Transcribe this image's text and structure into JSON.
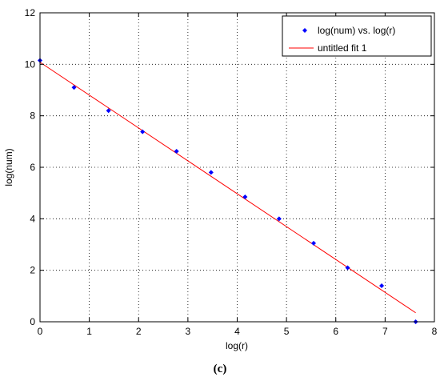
{
  "caption": "(c)",
  "chart_data": {
    "type": "scatter",
    "xlabel": "log(r)",
    "ylabel": "log(num)",
    "xlim": [
      0,
      8
    ],
    "ylim": [
      0,
      12
    ],
    "xticks": [
      "0",
      "1",
      "2",
      "3",
      "4",
      "5",
      "6",
      "7",
      "8"
    ],
    "yticks": [
      "0",
      "2",
      "4",
      "6",
      "8",
      "10",
      "12"
    ],
    "grid": true,
    "legend_position": "top-right",
    "series": [
      {
        "name": "log(num) vs. log(r)",
        "type": "scatter",
        "color": "#0000ff",
        "x": [
          0,
          0.69,
          1.39,
          2.08,
          2.77,
          3.47,
          4.16,
          4.85,
          5.55,
          6.24,
          6.93,
          7.62
        ],
        "y": [
          10.15,
          9.1,
          8.2,
          7.38,
          6.62,
          5.8,
          4.85,
          4.0,
          3.05,
          2.1,
          1.4,
          0.0
        ]
      },
      {
        "name": "untitled fit 1",
        "type": "line",
        "color": "#ff0000",
        "x": [
          0,
          7.62
        ],
        "y": [
          10.08,
          0.35
        ]
      }
    ]
  }
}
